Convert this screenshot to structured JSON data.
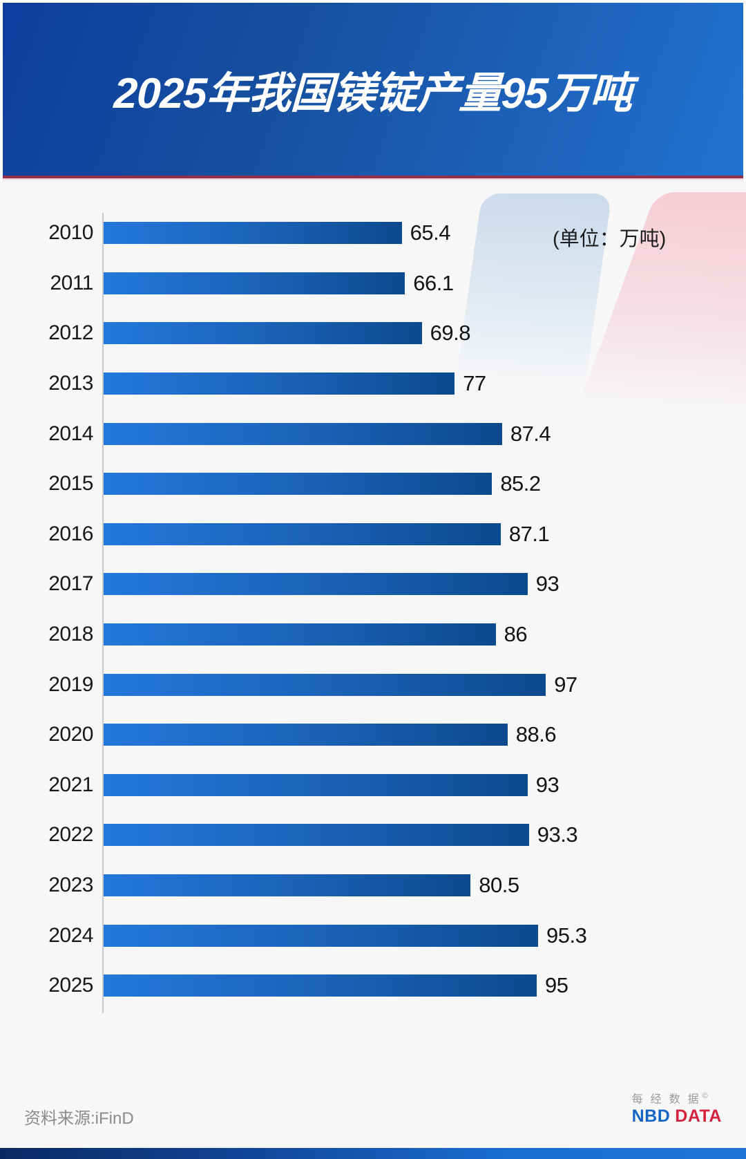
{
  "title": "2025年我国镁锭产量95万吨",
  "unit_label": "(单位：万吨)",
  "source": "资料来源:iFinD",
  "logo": {
    "cn": "每经数据",
    "copyright": "©",
    "nbd": "NBD",
    "data": "DATA"
  },
  "colors": {
    "header_gradient_start": "#0e3ea0",
    "header_gradient_end": "#2272d2",
    "divider_red": "#93304a",
    "bar_gradient_start": "#2478dc",
    "bar_gradient_end": "#0c4a8e",
    "background": "#f7f7f8",
    "deco_blue": "#c7d9eb",
    "deco_pink": "#f5c9d3",
    "logo_nbd_blue": "#1465c6",
    "logo_data_red": "#d5233e"
  },
  "chart_data": {
    "type": "bar",
    "orientation": "horizontal",
    "title": "2025年我国镁锭产量95万吨",
    "unit": "万吨",
    "categories": [
      "2010",
      "2011",
      "2012",
      "2013",
      "2014",
      "2015",
      "2016",
      "2017",
      "2018",
      "2019",
      "2020",
      "2021",
      "2022",
      "2023",
      "2024",
      "2025"
    ],
    "values": [
      65.4,
      66.1,
      69.8,
      77,
      87.4,
      85.2,
      87.1,
      93,
      86,
      97,
      88.6,
      93,
      93.3,
      80.5,
      95.3,
      95
    ],
    "display_values": [
      "65.4",
      "66.1",
      "69.8",
      "77",
      "87.4",
      "85.2",
      "87.1",
      "93",
      "86",
      "97",
      "88.6",
      "93",
      "93.3",
      "80.5",
      "95.3",
      "95"
    ],
    "xlim": [
      0,
      100
    ],
    "grid": false,
    "legend": false,
    "value_labels_position": "right-of-bar"
  }
}
